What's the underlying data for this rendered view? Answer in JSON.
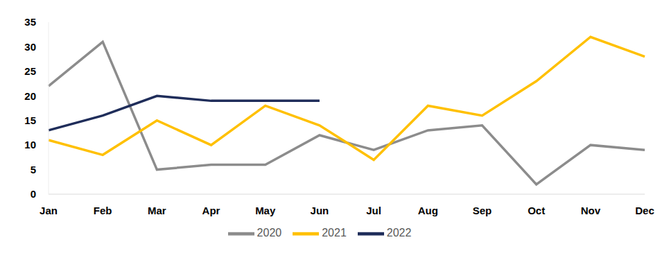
{
  "chart_data": {
    "type": "line",
    "categories": [
      "Jan",
      "Feb",
      "Mar",
      "Apr",
      "May",
      "Jun",
      "Jul",
      "Aug",
      "Sep",
      "Oct",
      "Nov",
      "Dec"
    ],
    "series": [
      {
        "name": "2020",
        "color": "#8c8c8c",
        "values": [
          22,
          31,
          5,
          6,
          6,
          12,
          9,
          13,
          14,
          2,
          10,
          9
        ]
      },
      {
        "name": "2021",
        "color": "#ffc000",
        "values": [
          11,
          8,
          15,
          10,
          18,
          14,
          7,
          18,
          16,
          23,
          32,
          28
        ]
      },
      {
        "name": "2022",
        "color": "#1f2d5a",
        "values": [
          13,
          16,
          20,
          19,
          19,
          19,
          null,
          null,
          null,
          null,
          null,
          null
        ]
      }
    ],
    "ylim": [
      0,
      35
    ],
    "yticks": [
      0,
      5,
      10,
      15,
      20,
      25,
      30,
      35
    ],
    "grid": false,
    "legend": "bottom"
  }
}
